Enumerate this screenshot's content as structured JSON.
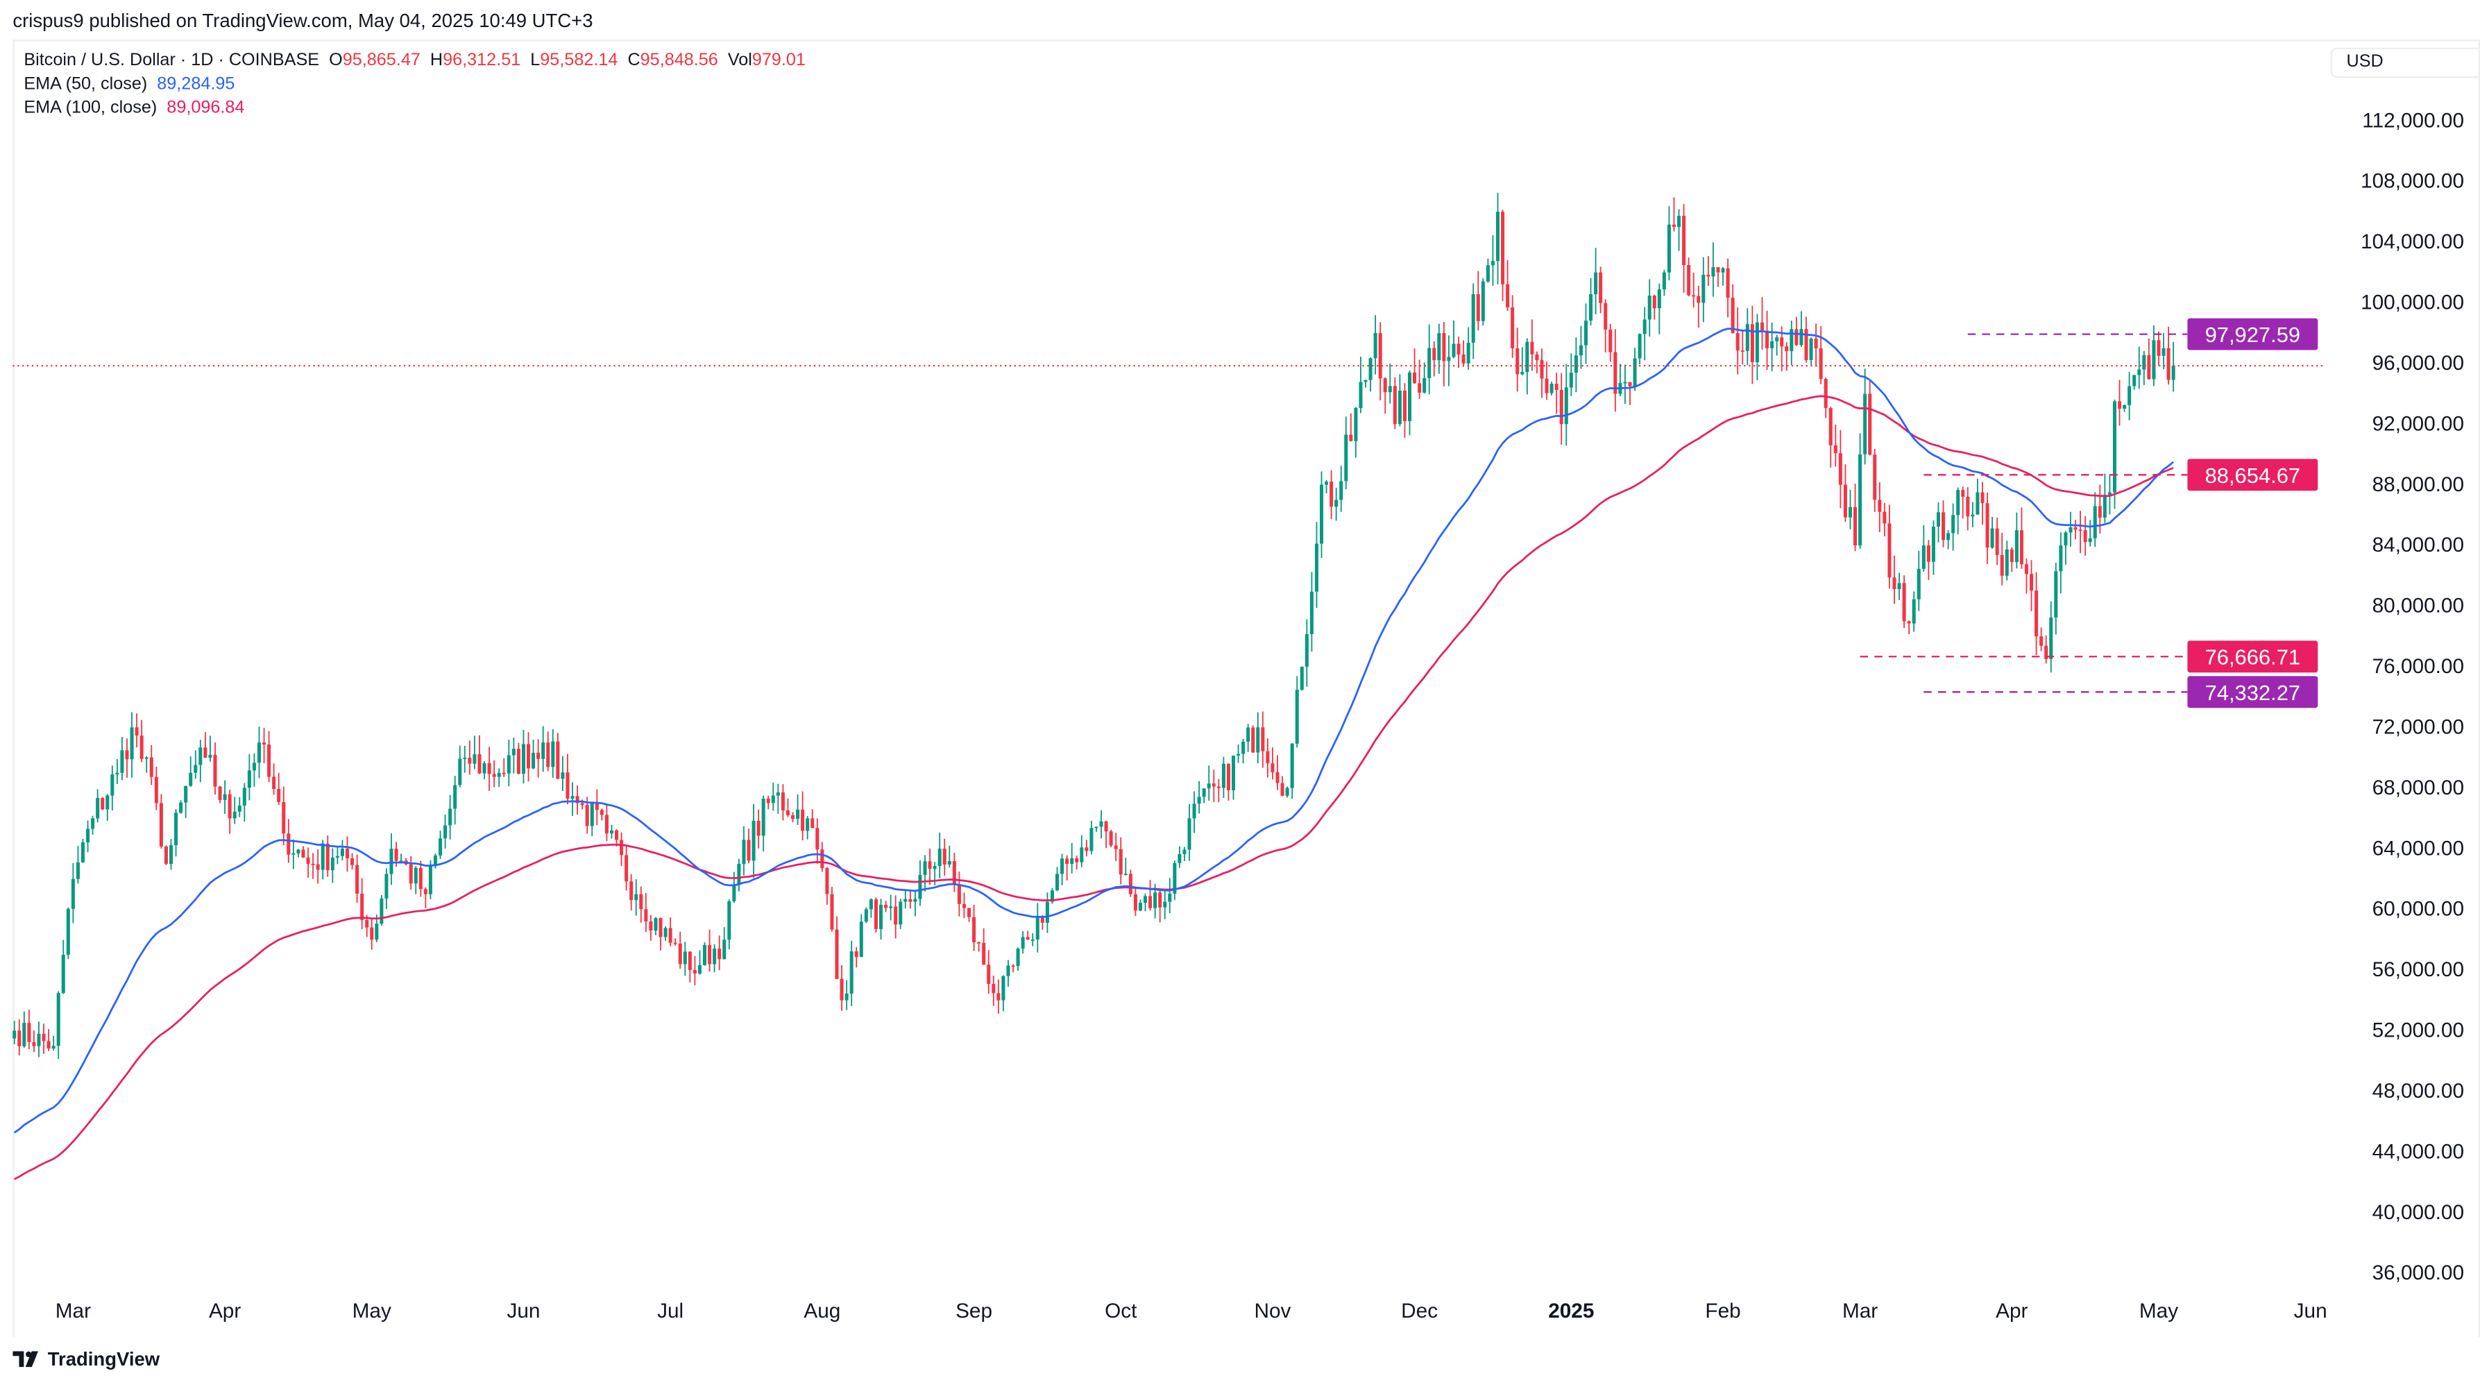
{
  "header": {
    "published": "crispus9 published on TradingView.com, May 04, 2025 10:49 UTC+3"
  },
  "legend": {
    "symbol": "Bitcoin / U.S. Dollar · 1D · COINBASE",
    "o_label": "O",
    "o": "95,865.47",
    "h_label": "H",
    "h": "96,312.51",
    "l_label": "L",
    "l": "95,582.14",
    "c_label": "C",
    "c": "95,848.56",
    "vol_label": "Vol",
    "vol": "979.01",
    "ema50_label": "EMA (50, close)",
    "ema50": "89,284.95",
    "ema100_label": "EMA (100, close)",
    "ema100": "89,096.84"
  },
  "currency": "USD",
  "logo": "TradingView",
  "colors": {
    "up": "#089981",
    "down": "#f23645",
    "ema50": "#2962ff",
    "ema100": "#e91e63",
    "purple": "#9c27b0",
    "pink": "#e91e63"
  },
  "chart_data": {
    "type": "candlestick",
    "title": "Bitcoin / U.S. Dollar · 1D · COINBASE",
    "ylim": [
      36000,
      112000
    ],
    "y_ticks": [
      "112,000.00",
      "108,000.00",
      "104,000.00",
      "100,000.00",
      "96,000.00",
      "92,000.00",
      "88,000.00",
      "84,000.00",
      "80,000.00",
      "76,000.00",
      "72,000.00",
      "68,000.00",
      "64,000.00",
      "60,000.00",
      "56,000.00",
      "52,000.00",
      "48,000.00",
      "44,000.00",
      "40,000.00",
      "36,000.00"
    ],
    "y_tick_values": [
      112000,
      108000,
      104000,
      100000,
      96000,
      92000,
      88000,
      84000,
      80000,
      76000,
      72000,
      68000,
      64000,
      60000,
      56000,
      52000,
      48000,
      44000,
      40000,
      36000
    ],
    "x_ticks": [
      {
        "label": "Mar",
        "date": "2024-03-01"
      },
      {
        "label": "Apr",
        "date": "2024-04-01"
      },
      {
        "label": "May",
        "date": "2024-05-01"
      },
      {
        "label": "Jun",
        "date": "2024-06-01"
      },
      {
        "label": "Jul",
        "date": "2024-07-01"
      },
      {
        "label": "Aug",
        "date": "2024-08-01"
      },
      {
        "label": "Sep",
        "date": "2024-09-01"
      },
      {
        "label": "Oct",
        "date": "2024-10-01"
      },
      {
        "label": "Nov",
        "date": "2024-11-01"
      },
      {
        "label": "Dec",
        "date": "2024-12-01"
      },
      {
        "label": "2025",
        "date": "2025-01-01"
      },
      {
        "label": "Feb",
        "date": "2025-02-01"
      },
      {
        "label": "Mar",
        "date": "2025-03-01"
      },
      {
        "label": "Apr",
        "date": "2025-04-01"
      },
      {
        "label": "May",
        "date": "2025-05-01"
      },
      {
        "label": "Jun",
        "date": "2025-06-01"
      }
    ],
    "close_anchors": [
      [
        "2024-02-18",
        52000
      ],
      [
        "2024-02-26",
        51000
      ],
      [
        "2024-02-28",
        57000
      ],
      [
        "2024-03-01",
        62000
      ],
      [
        "2024-03-05",
        66000
      ],
      [
        "2024-03-10",
        69000
      ],
      [
        "2024-03-13",
        72000
      ],
      [
        "2024-03-18",
        67000
      ],
      [
        "2024-03-20",
        63000
      ],
      [
        "2024-03-25",
        69000
      ],
      [
        "2024-03-28",
        70000
      ],
      [
        "2024-04-02",
        66000
      ],
      [
        "2024-04-08",
        71000
      ],
      [
        "2024-04-13",
        65000
      ],
      [
        "2024-04-18",
        63000
      ],
      [
        "2024-04-25",
        64000
      ],
      [
        "2024-05-01",
        58000
      ],
      [
        "2024-05-05",
        64000
      ],
      [
        "2024-05-12",
        61000
      ],
      [
        "2024-05-20",
        70000
      ],
      [
        "2024-05-27",
        69000
      ],
      [
        "2024-06-05",
        71000
      ],
      [
        "2024-06-12",
        67000
      ],
      [
        "2024-06-18",
        65000
      ],
      [
        "2024-06-24",
        61000
      ],
      [
        "2024-07-05",
        56000
      ],
      [
        "2024-07-12",
        58000
      ],
      [
        "2024-07-15",
        63000
      ],
      [
        "2024-07-22",
        67500
      ],
      [
        "2024-07-29",
        66000
      ],
      [
        "2024-08-02",
        61000
      ],
      [
        "2024-08-05",
        54000
      ],
      [
        "2024-08-10",
        60000
      ],
      [
        "2024-08-16",
        59000
      ],
      [
        "2024-08-25",
        64000
      ],
      [
        "2024-09-06",
        54000
      ],
      [
        "2024-09-12",
        58000
      ],
      [
        "2024-09-20",
        63000
      ],
      [
        "2024-09-27",
        65800
      ],
      [
        "2024-10-03",
        61000
      ],
      [
        "2024-10-10",
        60500
      ],
      [
        "2024-10-15",
        66000
      ],
      [
        "2024-10-21",
        68000
      ],
      [
        "2024-10-29",
        72000
      ],
      [
        "2024-11-04",
        68000
      ],
      [
        "2024-11-07",
        76000
      ],
      [
        "2024-11-11",
        88000
      ],
      [
        "2024-11-14",
        87000
      ],
      [
        "2024-11-22",
        98000
      ],
      [
        "2024-11-26",
        92000
      ],
      [
        "2024-12-05",
        98000
      ],
      [
        "2024-12-10",
        96000
      ],
      [
        "2024-12-17",
        106000
      ],
      [
        "2024-12-20",
        97000
      ],
      [
        "2024-12-26",
        95000
      ],
      [
        "2024-12-30",
        92000
      ],
      [
        "2025-01-06",
        102000
      ],
      [
        "2025-01-10",
        94000
      ],
      [
        "2025-01-13",
        94500
      ],
      [
        "2025-01-20",
        102000
      ],
      [
        "2025-01-22",
        105000
      ],
      [
        "2025-01-27",
        100000
      ],
      [
        "2025-01-31",
        102000
      ],
      [
        "2025-02-03",
        98000
      ],
      [
        "2025-02-10",
        97000
      ],
      [
        "2025-02-20",
        97000
      ],
      [
        "2025-02-25",
        88000
      ],
      [
        "2025-02-28",
        84000
      ],
      [
        "2025-03-02",
        94000
      ],
      [
        "2025-03-04",
        87000
      ],
      [
        "2025-03-10",
        79000
      ],
      [
        "2025-03-14",
        84000
      ],
      [
        "2025-03-20",
        86000
      ],
      [
        "2025-03-25",
        87500
      ],
      [
        "2025-03-30",
        82000
      ],
      [
        "2025-04-02",
        85000
      ],
      [
        "2025-04-06",
        78000
      ],
      [
        "2025-04-08",
        76500
      ],
      [
        "2025-04-11",
        84000
      ],
      [
        "2025-04-15",
        85000
      ],
      [
        "2025-04-21",
        87500
      ],
      [
        "2025-04-22",
        93500
      ],
      [
        "2025-04-25",
        94500
      ],
      [
        "2025-05-01",
        96500
      ],
      [
        "2025-05-02",
        97000
      ],
      [
        "2025-05-04",
        95848.56
      ]
    ],
    "ema_start": {
      "ema50": 45000,
      "ema100": 42000
    },
    "current_price": 95848.56,
    "levels": [
      {
        "label": "97,927.59",
        "value": 97927.59,
        "color": "purple",
        "from": "2025-03-23"
      },
      {
        "label": "88,654.67",
        "value": 88654.67,
        "color": "pink",
        "from": "2025-03-14"
      },
      {
        "label": "76,666.71",
        "value": 76666.71,
        "color": "pink",
        "from": "2025-03-01"
      },
      {
        "label": "74,332.27",
        "value": 74332.27,
        "color": "purple",
        "from": "2025-03-14"
      }
    ]
  }
}
